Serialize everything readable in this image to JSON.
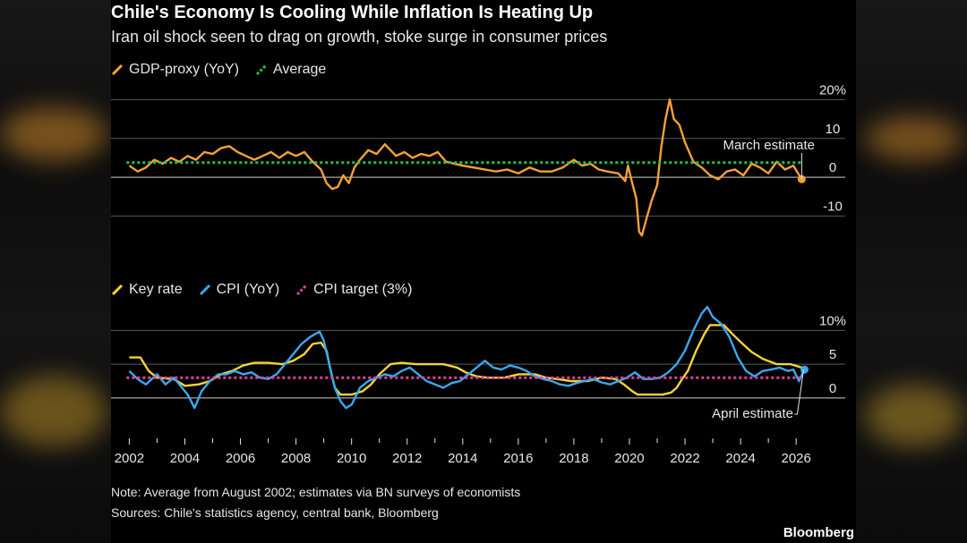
{
  "title": "Chile's Economy Is Cooling While Inflation Is Heating Up",
  "subtitle": "Iran oil shock seen to drag on growth, stoke surge in consumer prices",
  "note": "Note: Average from August 2002; estimates via BN surveys of economists",
  "sources": "Sources: Chile's statistics agency, central bank, Bloomberg",
  "brand": "Bloomberg",
  "colors": {
    "gdp": "#f5a03a",
    "average": "#27c04a",
    "key_rate": "#f5d33a",
    "cpi": "#3aa8f0",
    "target": "#e2409c",
    "grid": "#5a5a5a"
  },
  "chart_data": [
    {
      "type": "line",
      "legend": [
        {
          "label": "GDP-proxy (YoY)",
          "color_key": "gdp",
          "icon": "slash-line-icon"
        },
        {
          "label": "Average",
          "color_key": "average",
          "icon": "slash-dash-icon"
        }
      ],
      "yticks": [
        "20%",
        "10",
        "0",
        "-10"
      ],
      "ytick_values": [
        20,
        10,
        0,
        -10
      ],
      "ylim": [
        -17,
        21
      ],
      "xlim": [
        2001.6,
        2026.8
      ],
      "annotation": "March estimate",
      "series": [
        {
          "name": "GDP-proxy (YoY)",
          "x": [
            2002.0,
            2002.3,
            2002.6,
            2002.9,
            2003.2,
            2003.5,
            2003.8,
            2004.1,
            2004.4,
            2004.7,
            2005.0,
            2005.3,
            2005.6,
            2005.9,
            2006.2,
            2006.5,
            2006.8,
            2007.1,
            2007.4,
            2007.7,
            2008.0,
            2008.3,
            2008.6,
            2008.9,
            2009.1,
            2009.3,
            2009.5,
            2009.7,
            2009.9,
            2010.1,
            2010.3,
            2010.6,
            2010.9,
            2011.2,
            2011.4,
            2011.6,
            2011.9,
            2012.2,
            2012.5,
            2012.8,
            2013.1,
            2013.4,
            2013.7,
            2014.0,
            2014.4,
            2014.8,
            2015.2,
            2015.6,
            2016.0,
            2016.4,
            2016.8,
            2017.2,
            2017.6,
            2018.0,
            2018.3,
            2018.6,
            2018.9,
            2019.2,
            2019.6,
            2019.85,
            2019.95,
            2020.1,
            2020.25,
            2020.35,
            2020.45,
            2020.6,
            2020.8,
            2021.0,
            2021.15,
            2021.3,
            2021.45,
            2021.6,
            2021.8,
            2022.0,
            2022.3,
            2022.6,
            2022.9,
            2023.2,
            2023.5,
            2023.8,
            2024.1,
            2024.4,
            2024.7,
            2025.0,
            2025.3,
            2025.6,
            2025.9,
            2026.2
          ],
          "y": [
            3.0,
            1.5,
            2.5,
            4.5,
            3.5,
            5.0,
            4.0,
            5.5,
            4.5,
            6.5,
            6.0,
            7.5,
            8.0,
            6.5,
            5.5,
            4.5,
            5.5,
            6.5,
            5.0,
            6.5,
            5.5,
            6.5,
            4.0,
            2.0,
            -1.5,
            -3.0,
            -2.5,
            0.5,
            -1.5,
            2.5,
            4.5,
            7.0,
            6.0,
            8.5,
            7.0,
            5.5,
            6.5,
            5.0,
            6.0,
            5.5,
            6.5,
            4.0,
            3.5,
            3.0,
            2.5,
            2.0,
            1.5,
            2.0,
            1.0,
            2.5,
            1.5,
            1.5,
            2.5,
            4.5,
            3.0,
            3.5,
            2.0,
            1.5,
            1.0,
            -1.0,
            3.0,
            -1.5,
            -5.5,
            -14.0,
            -15.0,
            -11.0,
            -6.0,
            -2.0,
            8.0,
            15.0,
            20.0,
            15.0,
            13.5,
            9.0,
            4.0,
            2.5,
            0.5,
            -0.5,
            1.5,
            2.0,
            0.5,
            3.5,
            2.5,
            1.0,
            4.0,
            2.0,
            3.0,
            -0.5
          ]
        },
        {
          "name": "Average",
          "x": [
            2001.9,
            2026.2
          ],
          "y": [
            3.8,
            3.8
          ]
        }
      ]
    },
    {
      "type": "line",
      "legend": [
        {
          "label": "Key rate",
          "color_key": "key_rate",
          "icon": "slash-line-icon"
        },
        {
          "label": "CPI (YoY)",
          "color_key": "cpi",
          "icon": "slash-line-icon"
        },
        {
          "label": "CPI target (3%)",
          "color_key": "target",
          "icon": "slash-dash-icon"
        }
      ],
      "yticks": [
        "10%",
        "5",
        "0"
      ],
      "ytick_values": [
        10,
        5,
        0
      ],
      "ylim": [
        -4,
        13.5
      ],
      "xlim": [
        2001.6,
        2026.8
      ],
      "xticks": [
        "2002",
        "2004",
        "2006",
        "2008",
        "2010",
        "2012",
        "2014",
        "2016",
        "2018",
        "2020",
        "2022",
        "2024",
        "2026"
      ],
      "xtick_values": [
        2002,
        2004,
        2006,
        2008,
        2010,
        2012,
        2014,
        2016,
        2018,
        2020,
        2022,
        2024,
        2026
      ],
      "annotation": "April estimate",
      "series": [
        {
          "name": "Key rate",
          "x": [
            2002.0,
            2002.4,
            2002.7,
            2003.0,
            2003.6,
            2004.0,
            2004.5,
            2004.9,
            2005.3,
            2005.7,
            2006.1,
            2006.5,
            2007.0,
            2007.5,
            2007.9,
            2008.3,
            2008.6,
            2008.9,
            2009.1,
            2009.25,
            2009.4,
            2009.6,
            2010.0,
            2010.4,
            2010.7,
            2011.0,
            2011.4,
            2011.8,
            2012.3,
            2012.8,
            2013.3,
            2013.8,
            2014.1,
            2014.5,
            2014.9,
            2015.5,
            2016.0,
            2016.6,
            2017.0,
            2017.4,
            2017.9,
            2018.5,
            2019.0,
            2019.5,
            2019.8,
            2020.1,
            2020.3,
            2020.8,
            2021.2,
            2021.5,
            2021.7,
            2021.9,
            2022.1,
            2022.4,
            2022.7,
            2022.9,
            2023.4,
            2023.7,
            2024.0,
            2024.4,
            2024.8,
            2025.3,
            2025.8,
            2026.2
          ],
          "y": [
            6.0,
            6.0,
            4.0,
            3.0,
            2.8,
            1.8,
            2.0,
            2.5,
            3.5,
            4.0,
            4.8,
            5.2,
            5.2,
            5.0,
            5.5,
            6.5,
            8.0,
            8.2,
            7.0,
            4.0,
            1.5,
            0.5,
            0.5,
            1.0,
            2.0,
            3.5,
            5.0,
            5.2,
            5.0,
            5.0,
            5.0,
            4.5,
            3.8,
            3.2,
            3.0,
            3.0,
            3.5,
            3.5,
            3.0,
            2.8,
            2.5,
            2.5,
            3.0,
            2.8,
            2.0,
            1.0,
            0.5,
            0.5,
            0.5,
            0.8,
            1.5,
            2.8,
            4.0,
            7.0,
            9.5,
            10.8,
            10.8,
            9.5,
            8.3,
            6.8,
            5.8,
            5.0,
            5.0,
            4.5
          ]
        },
        {
          "name": "CPI (YoY)",
          "x": [
            2002.0,
            2002.3,
            2002.6,
            2003.0,
            2003.3,
            2003.6,
            2003.9,
            2004.1,
            2004.35,
            2004.6,
            2004.9,
            2005.2,
            2005.5,
            2005.8,
            2006.1,
            2006.4,
            2006.7,
            2007.0,
            2007.3,
            2007.6,
            2007.9,
            2008.2,
            2008.5,
            2008.7,
            2008.85,
            2009.0,
            2009.2,
            2009.4,
            2009.6,
            2009.8,
            2010.0,
            2010.3,
            2010.6,
            2010.9,
            2011.2,
            2011.5,
            2011.8,
            2012.1,
            2012.4,
            2012.7,
            2013.0,
            2013.3,
            2013.6,
            2013.9,
            2014.2,
            2014.5,
            2014.8,
            2015.1,
            2015.4,
            2015.7,
            2016.0,
            2016.3,
            2016.6,
            2016.9,
            2017.2,
            2017.5,
            2017.8,
            2018.1,
            2018.4,
            2018.7,
            2019.0,
            2019.3,
            2019.6,
            2019.9,
            2020.2,
            2020.5,
            2020.8,
            2021.1,
            2021.4,
            2021.7,
            2022.0,
            2022.3,
            2022.6,
            2022.8,
            2023.0,
            2023.3,
            2023.6,
            2023.9,
            2024.2,
            2024.5,
            2024.8,
            2025.1,
            2025.4,
            2025.7,
            2025.9,
            2026.1,
            2026.3
          ],
          "y": [
            4.0,
            2.8,
            2.0,
            3.5,
            2.0,
            3.0,
            1.5,
            0.5,
            -1.5,
            1.0,
            2.5,
            3.5,
            3.5,
            4.0,
            3.5,
            3.8,
            3.0,
            2.8,
            3.5,
            5.0,
            6.5,
            8.0,
            9.0,
            9.5,
            9.8,
            8.5,
            5.0,
            1.5,
            -0.5,
            -1.5,
            -1.0,
            1.5,
            2.5,
            3.0,
            3.5,
            3.2,
            4.0,
            4.5,
            3.5,
            2.5,
            2.0,
            1.5,
            2.2,
            2.5,
            3.5,
            4.5,
            5.5,
            4.5,
            4.2,
            4.8,
            4.5,
            4.0,
            3.2,
            2.8,
            2.5,
            2.0,
            1.8,
            2.2,
            2.5,
            2.8,
            2.3,
            2.0,
            2.5,
            3.0,
            3.8,
            2.8,
            2.8,
            3.0,
            3.8,
            5.0,
            7.0,
            10.0,
            12.5,
            13.5,
            12.0,
            11.0,
            9.0,
            6.0,
            4.0,
            3.2,
            4.0,
            4.2,
            4.5,
            4.0,
            4.2,
            2.5,
            4.2
          ]
        },
        {
          "name": "CPI target (3%)",
          "x": [
            2001.9,
            2026.2
          ],
          "y": [
            3.0,
            3.0
          ]
        }
      ]
    }
  ]
}
